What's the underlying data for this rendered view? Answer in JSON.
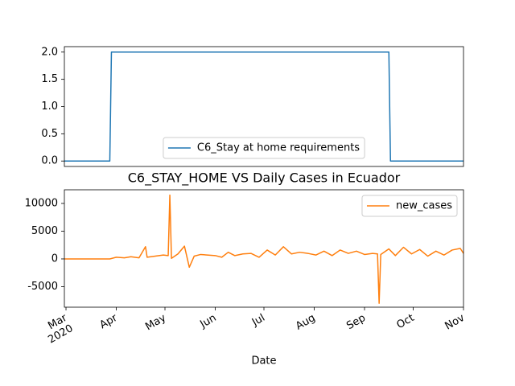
{
  "chart_data": [
    {
      "type": "line",
      "x": [
        "2020-02-29",
        "2020-03-28",
        "2020-03-29",
        "2020-09-16",
        "2020-09-17",
        "2020-11-01"
      ],
      "series": [
        {
          "name": "C6_Stay at home requirements",
          "color": "#1f77b4",
          "values": [
            0,
            0,
            2,
            2,
            0,
            0
          ]
        }
      ],
      "xlim": [
        "2020-02-29",
        "2020-11-01"
      ],
      "ylim": [
        -0.1,
        2.1
      ],
      "yticks": [
        {
          "value": 0,
          "label": "0.0"
        },
        {
          "value": 0.5,
          "label": "0.5"
        },
        {
          "value": 1,
          "label": "1.0"
        },
        {
          "value": 1.5,
          "label": "1.5"
        },
        {
          "value": 2,
          "label": "2.0"
        }
      ],
      "legend": "lower center"
    },
    {
      "type": "line",
      "title": "C6_STAY_HOME VS Daily Cases in Ecuador",
      "x_label": "Date",
      "x": [
        "2020-02-29",
        "2020-03-10",
        "2020-03-20",
        "2020-03-28",
        "2020-04-01",
        "2020-04-06",
        "2020-04-10",
        "2020-04-15",
        "2020-04-19",
        "2020-04-20",
        "2020-04-25",
        "2020-04-30",
        "2020-05-03",
        "2020-05-04",
        "2020-05-05",
        "2020-05-09",
        "2020-05-13",
        "2020-05-16",
        "2020-05-19",
        "2020-05-23",
        "2020-05-27",
        "2020-06-01",
        "2020-06-05",
        "2020-06-09",
        "2020-06-13",
        "2020-06-18",
        "2020-06-23",
        "2020-06-28",
        "2020-07-03",
        "2020-07-08",
        "2020-07-13",
        "2020-07-18",
        "2020-07-23",
        "2020-07-28",
        "2020-08-02",
        "2020-08-07",
        "2020-08-12",
        "2020-08-17",
        "2020-08-22",
        "2020-08-27",
        "2020-09-01",
        "2020-09-06",
        "2020-09-09",
        "2020-09-10",
        "2020-09-11",
        "2020-09-16",
        "2020-09-20",
        "2020-09-25",
        "2020-09-30",
        "2020-10-05",
        "2020-10-10",
        "2020-10-15",
        "2020-10-20",
        "2020-10-25",
        "2020-10-30",
        "2020-11-01"
      ],
      "series": [
        {
          "name": "new_cases",
          "color": "#ff7f0e",
          "values": [
            0,
            0,
            0,
            0,
            300,
            200,
            400,
            200,
            2200,
            300,
            500,
            700,
            600,
            11500,
            100,
            900,
            2300,
            -1500,
            500,
            800,
            700,
            600,
            300,
            1200,
            600,
            900,
            1000,
            300,
            1600,
            700,
            2200,
            900,
            1200,
            1000,
            700,
            1400,
            600,
            1600,
            1000,
            1400,
            800,
            1000,
            900,
            -8000,
            800,
            1800,
            600,
            2100,
            900,
            1700,
            500,
            1400,
            700,
            1600,
            1900,
            1000
          ]
        }
      ],
      "xlim": [
        "2020-02-29",
        "2020-11-01"
      ],
      "xticks": [
        {
          "value": "2020-03-01",
          "label": "Mar\n2020"
        },
        {
          "value": "2020-04-01",
          "label": "Apr"
        },
        {
          "value": "2020-05-01",
          "label": "May"
        },
        {
          "value": "2020-06-01",
          "label": "Jun"
        },
        {
          "value": "2020-07-01",
          "label": "Jul"
        },
        {
          "value": "2020-08-01",
          "label": "Aug"
        },
        {
          "value": "2020-09-01",
          "label": "Sep"
        },
        {
          "value": "2020-10-01",
          "label": "Oct"
        },
        {
          "value": "2020-11-01",
          "label": "Nov"
        }
      ],
      "ylim": [
        -8700,
        12460
      ],
      "yticks": [
        -5000,
        0,
        5000,
        10000
      ],
      "legend": "upper right"
    }
  ]
}
